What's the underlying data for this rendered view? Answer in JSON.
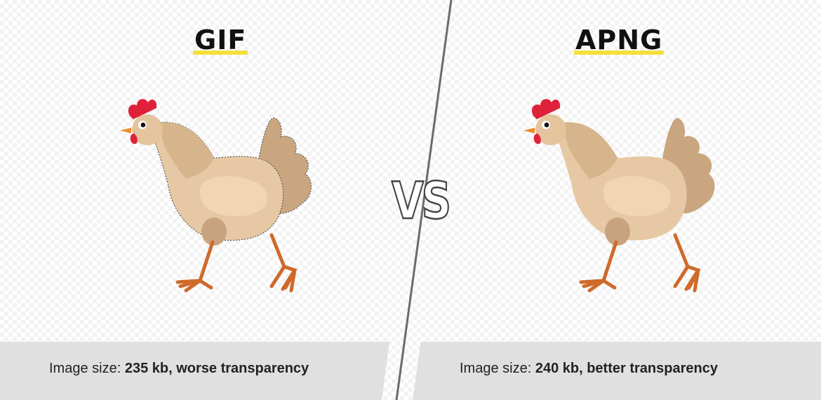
{
  "left": {
    "title": "GIF",
    "caption_prefix": "Image size: ",
    "caption_bold": "235 kb, worse transparency"
  },
  "right": {
    "title": "APNG",
    "caption_prefix": "Image size: ",
    "caption_bold": "240 kb, better transparency"
  },
  "vs_label": "VS",
  "colors": {
    "title_underline": "#f5e03a",
    "caption_bar": "#e0e0e0",
    "divider": "#6b6b6b",
    "hen_body": "#e6c9a4",
    "hen_neck": "#d6b48c",
    "hen_comb": "#e0213a",
    "hen_legs": "#cf6a2a"
  },
  "icons": [
    "chicken-illustration",
    "chicken-illustration"
  ]
}
